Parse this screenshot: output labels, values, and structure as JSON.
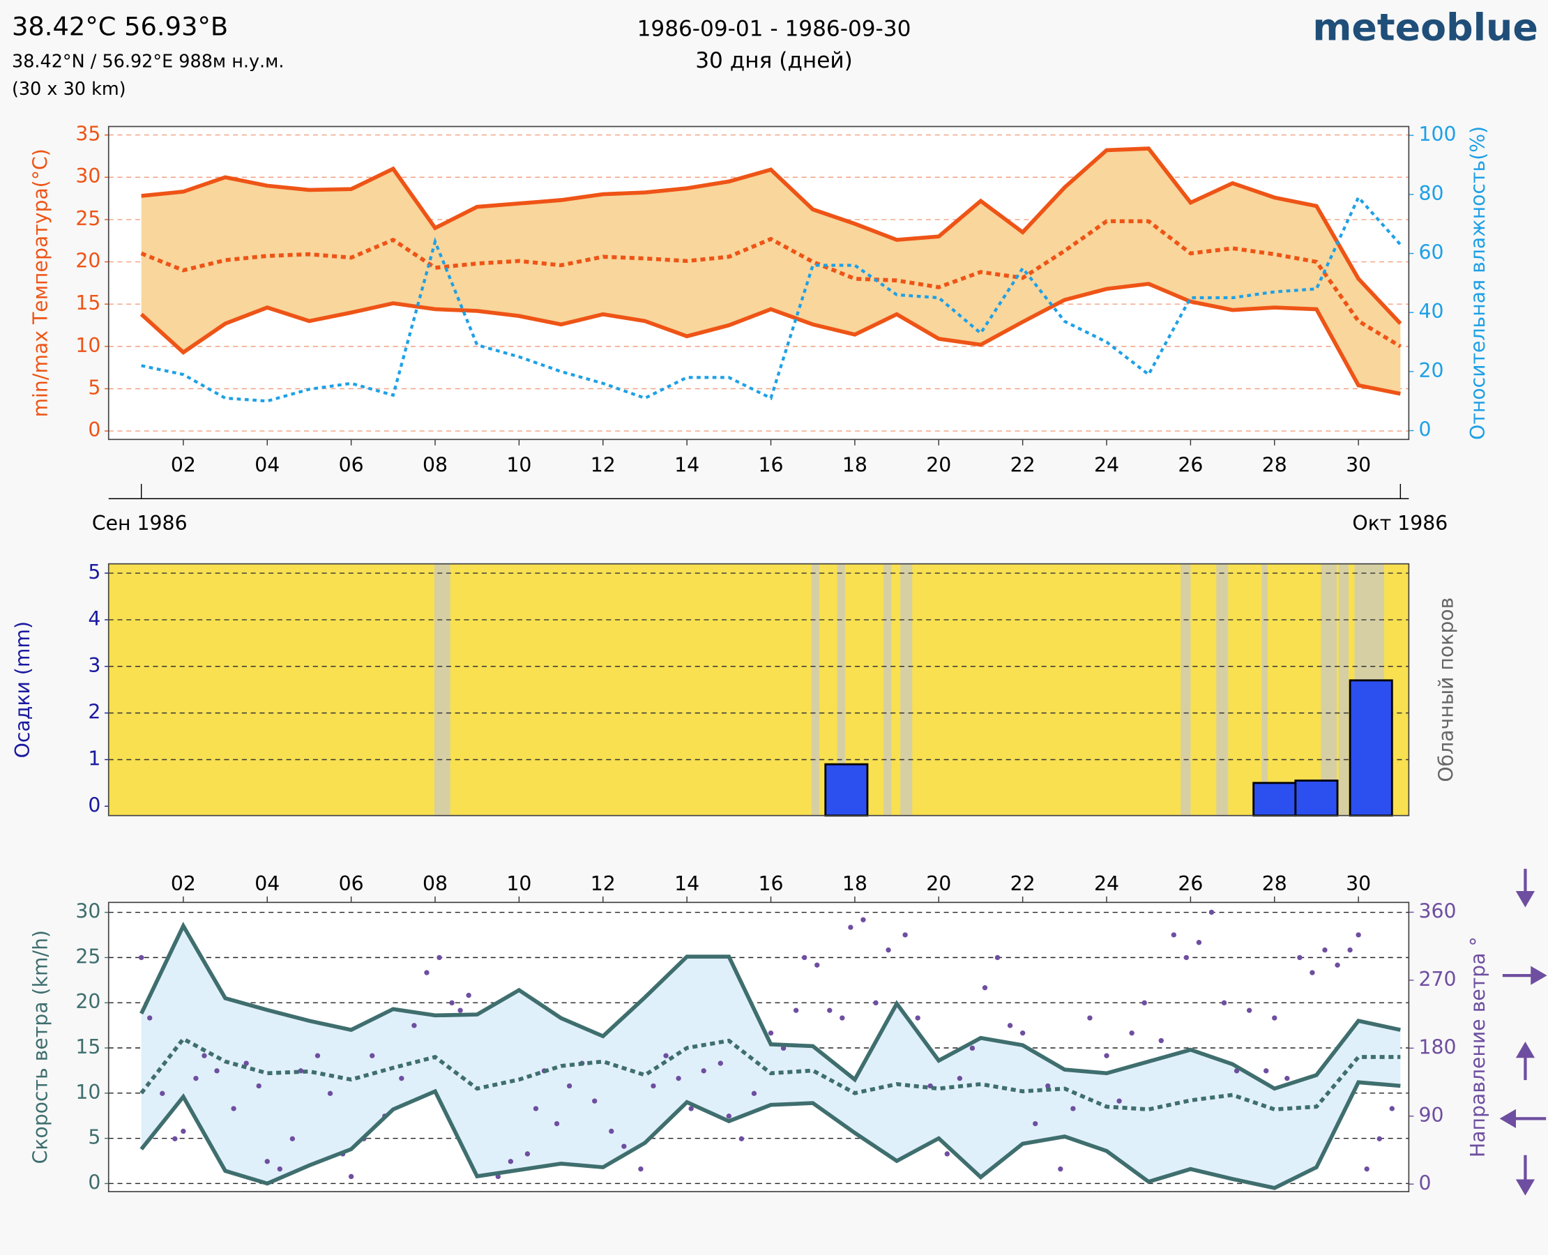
{
  "header": {
    "title": "38.42°C 56.93°B",
    "coords": "38.42°N / 56.92°E   988м н.у.м.",
    "resolution": "(30 x 30 km)",
    "period": "1986-09-01 - 1986-09-30",
    "days": "30 дня (дней)",
    "brand": "meteoblue"
  },
  "chart_data": [
    {
      "type": "line",
      "ylabel": "min/max Температура(°C)",
      "y2label": "Относительная влажность(%)",
      "x": [
        1,
        2,
        3,
        4,
        5,
        6,
        7,
        8,
        9,
        10,
        11,
        12,
        13,
        14,
        15,
        16,
        17,
        18,
        19,
        20,
        21,
        22,
        23,
        24,
        25,
        26,
        27,
        28,
        29,
        30,
        31
      ],
      "xlim": [
        0.22,
        31.2
      ],
      "xticks": [
        {
          "value": 2,
          "label": "02"
        },
        {
          "value": 4,
          "label": "04"
        },
        {
          "value": 6,
          "label": "06"
        },
        {
          "value": 8,
          "label": "08"
        },
        10,
        12,
        14,
        16,
        18,
        20,
        22,
        24,
        26,
        28,
        30
      ],
      "x2ticks": [
        {
          "value": 1,
          "label": "Сен 1986"
        },
        {
          "value": 31,
          "label": "Окт 1986"
        }
      ],
      "ylim": [
        -1,
        36
      ],
      "yticks": [
        0,
        5,
        10,
        15,
        20,
        25,
        30,
        35
      ],
      "y2lim": [
        -3,
        103
      ],
      "y2ticks": [
        0,
        20,
        40,
        60,
        80,
        100
      ],
      "grid": true,
      "band_color": "#f8d69c",
      "series": [
        {
          "color": "#ee5416",
          "style": "solid",
          "values": [
            27.8,
            28.3,
            30.0,
            29.0,
            28.5,
            28.6,
            31.0,
            24.0,
            26.5,
            26.9,
            27.3,
            28.0,
            28.2,
            28.7,
            29.5,
            30.9,
            26.2,
            24.5,
            22.6,
            23.0,
            27.2,
            23.5,
            28.8,
            33.2,
            33.4,
            27.0,
            29.3,
            27.6,
            26.6,
            18.0,
            12.7
          ]
        },
        {
          "color": "#ee5416",
          "style": "dotted",
          "values": [
            21.0,
            19.0,
            20.2,
            20.7,
            20.9,
            20.5,
            22.6,
            19.3,
            19.8,
            20.1,
            19.6,
            20.6,
            20.4,
            20.1,
            20.6,
            22.7,
            20.0,
            18.0,
            17.8,
            17.0,
            18.8,
            18.1,
            21.3,
            24.8,
            24.8,
            21.0,
            21.6,
            20.9,
            20.0,
            13.0,
            10.0
          ]
        },
        {
          "color": "#ee5416",
          "style": "solid",
          "values": [
            13.8,
            9.3,
            12.7,
            14.6,
            13.0,
            14.0,
            15.1,
            14.4,
            14.2,
            13.6,
            12.6,
            13.8,
            13.0,
            11.2,
            12.5,
            14.4,
            12.6,
            11.4,
            13.8,
            10.9,
            10.2,
            12.9,
            15.5,
            16.8,
            17.4,
            15.3,
            14.3,
            14.6,
            14.4,
            5.4,
            4.4
          ]
        },
        {
          "color": "#1ea0e6",
          "style": "dotted",
          "axis": "y2",
          "values": [
            22,
            19,
            11,
            10,
            14,
            16,
            12,
            64,
            29,
            25,
            20,
            16,
            11,
            18,
            18,
            11,
            56,
            56,
            46,
            45,
            33,
            55,
            37,
            30,
            19,
            45,
            45,
            47,
            48,
            79,
            63
          ]
        }
      ]
    },
    {
      "type": "bar",
      "ylabel": "Осадки (mm)",
      "y2label": "Облачный покров",
      "x": [
        17.8,
        28,
        29,
        30.3
      ],
      "values": [
        0.9,
        0.5,
        0.55,
        2.7
      ],
      "color": "#2c4ff0",
      "background": "#f8e050",
      "xlim": [
        0.22,
        31.2
      ],
      "ylim": [
        -0.2,
        5.2
      ],
      "yticks": [
        0,
        1,
        2,
        3,
        4,
        5
      ],
      "grid": true
    },
    {
      "type": "line",
      "ylabel": "Скорость ветра (km/h)",
      "y2label": "Направление ветра °",
      "x": [
        1,
        2,
        3,
        4,
        5,
        6,
        7,
        8,
        9,
        10,
        11,
        12,
        13,
        14,
        15,
        16,
        17,
        18,
        19,
        20,
        21,
        22,
        23,
        24,
        25,
        26,
        27,
        28,
        29,
        30,
        31
      ],
      "xlim": [
        0.22,
        31.2
      ],
      "xticks": [
        {
          "value": 2,
          "label": "02"
        },
        {
          "value": 4,
          "label": "04"
        },
        {
          "value": 6,
          "label": "06"
        },
        {
          "value": 8,
          "label": "08"
        },
        10,
        12,
        14,
        16,
        18,
        20,
        22,
        24,
        26,
        28,
        30
      ],
      "ylim": [
        -0.9,
        31.1
      ],
      "yticks": [
        0,
        5,
        10,
        15,
        20,
        25,
        30
      ],
      "y2lim": [
        -10,
        373
      ],
      "y2ticks": [
        0,
        90,
        180,
        270,
        360
      ],
      "grid": true,
      "band_color": "#e0f0fa",
      "series": [
        {
          "color": "#3f6e6e",
          "style": "solid",
          "values": [
            18.8,
            28.5,
            20.5,
            19.2,
            18.0,
            17.0,
            19.3,
            18.6,
            18.7,
            21.4,
            18.3,
            16.3,
            20.6,
            25.1,
            25.1,
            15.4,
            15.2,
            11.5,
            19.9,
            13.6,
            16.1,
            15.3,
            12.6,
            12.2,
            13.5,
            14.8,
            13.2,
            10.5,
            12.0,
            18.0,
            17.0
          ]
        },
        {
          "color": "#3f6e6e",
          "style": "dotted",
          "values": [
            10.0,
            16.0,
            13.5,
            12.2,
            12.4,
            11.5,
            12.8,
            14.0,
            10.5,
            11.5,
            13.0,
            13.5,
            12.0,
            15.0,
            15.8,
            12.2,
            12.5,
            10.0,
            11.0,
            10.5,
            11.0,
            10.2,
            10.5,
            8.5,
            8.2,
            9.2,
            9.8,
            8.2,
            8.5,
            14.0,
            14.0
          ]
        },
        {
          "color": "#3f6e6e",
          "style": "solid",
          "values": [
            3.8,
            9.6,
            1.4,
            0,
            2.0,
            3.8,
            8.2,
            10.2,
            0.8,
            1.5,
            2.2,
            1.8,
            4.5,
            9.0,
            6.9,
            8.7,
            8.9,
            5.6,
            2.5,
            5.0,
            0.7,
            4.4,
            5.2,
            3.6,
            0.2,
            1.6,
            0.5,
            -0.5,
            1.8,
            11.2,
            10.8
          ]
        }
      ],
      "direction": {
        "color": "#6e4ea0",
        "axis": "y2",
        "x": [
          1.0,
          1.2,
          1.5,
          1.8,
          2.0,
          2.3,
          2.5,
          2.8,
          3.2,
          3.5,
          3.8,
          4.0,
          4.3,
          4.6,
          4.8,
          5.2,
          5.5,
          5.8,
          6.0,
          6.3,
          6.5,
          6.8,
          7.2,
          7.5,
          7.8,
          8.1,
          8.4,
          8.6,
          8.8,
          9.5,
          9.8,
          10.2,
          10.4,
          10.6,
          10.9,
          11.2,
          11.5,
          11.8,
          12.2,
          12.5,
          12.9,
          13.2,
          13.5,
          13.8,
          14.1,
          14.4,
          14.8,
          15.0,
          15.3,
          15.6,
          16.0,
          16.3,
          16.6,
          16.8,
          17.1,
          17.4,
          17.7,
          17.9,
          18.2,
          18.5,
          18.8,
          19.2,
          19.5,
          19.8,
          20.2,
          20.5,
          20.8,
          21.1,
          21.4,
          21.7,
          22.0,
          22.3,
          22.6,
          22.9,
          23.2,
          23.6,
          24.0,
          24.3,
          24.6,
          24.9,
          25.3,
          25.6,
          25.9,
          26.2,
          26.5,
          26.8,
          27.1,
          27.4,
          27.8,
          28.0,
          28.3,
          28.6,
          28.9,
          29.2,
          29.5,
          29.8,
          30.0,
          30.2,
          30.5,
          30.8
        ],
        "values": [
          300,
          220,
          120,
          60,
          70,
          140,
          170,
          150,
          100,
          160,
          130,
          30,
          20,
          60,
          150,
          170,
          120,
          40,
          10,
          60,
          170,
          90,
          140,
          210,
          280,
          300,
          240,
          230,
          250,
          10,
          30,
          40,
          100,
          150,
          80,
          130,
          160,
          110,
          70,
          50,
          20,
          130,
          170,
          140,
          100,
          150,
          160,
          90,
          60,
          120,
          200,
          180,
          230,
          300,
          290,
          230,
          220,
          340,
          350,
          240,
          310,
          330,
          220,
          130,
          40,
          140,
          180,
          260,
          300,
          210,
          200,
          80,
          130,
          20,
          100,
          220,
          170,
          110,
          200,
          240,
          190,
          330,
          300,
          320,
          360,
          240,
          150,
          230,
          150,
          220,
          140,
          300,
          280,
          310,
          290,
          310,
          330,
          20,
          60,
          100
        ]
      }
    }
  ]
}
